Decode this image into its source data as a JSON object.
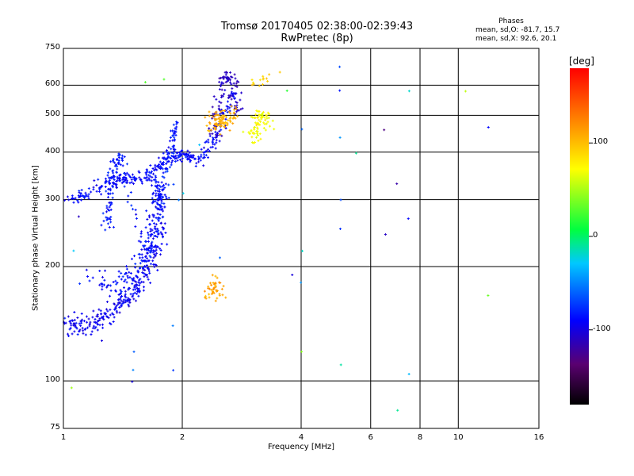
{
  "chart_data": {
    "type": "scatter",
    "title": "Tromsø 20170405 02:38:00-02:39:43",
    "subtitle": "RwPretec (8p)",
    "xlabel": "Frequency [MHz]",
    "ylabel": "Stationary phase Virtual Height [km]",
    "x_scale": "log",
    "y_scale": "log",
    "xlim": [
      1,
      16
    ],
    "ylim": [
      75,
      750
    ],
    "x_ticks": [
      1,
      2,
      4,
      6,
      8,
      10,
      16
    ],
    "x_tick_labels": [
      "1",
      "2",
      "4",
      "6",
      "8",
      "10",
      "16"
    ],
    "y_ticks": [
      75,
      100,
      200,
      300,
      400,
      500,
      600,
      750
    ],
    "y_tick_labels": [
      "75",
      "100",
      "200",
      "300",
      "400",
      "500",
      "600",
      "750"
    ],
    "grid": true,
    "stats": {
      "heading": "Phases",
      "line_o": "mean, sd,O: -81.7, 15.7",
      "line_x": "mean, sd,X:  92.6, 20.1"
    },
    "colorbar": {
      "label": "[deg]",
      "range": [
        -180,
        180
      ],
      "ticks": [
        100,
        0,
        -100
      ],
      "tick_labels": [
        "100",
        "0",
        "-100"
      ]
    },
    "clusters": [
      {
        "desc": "O-trace low branch",
        "points": [
          [
            1.02,
            142
          ],
          [
            1.05,
            140
          ],
          [
            1.1,
            138
          ],
          [
            1.15,
            140
          ],
          [
            1.2,
            142
          ],
          [
            1.25,
            145
          ],
          [
            1.3,
            150
          ],
          [
            1.35,
            155
          ],
          [
            1.4,
            160
          ],
          [
            1.45,
            165
          ],
          [
            1.5,
            170
          ],
          [
            1.55,
            180
          ],
          [
            1.6,
            190
          ],
          [
            1.65,
            200
          ],
          [
            1.7,
            215
          ],
          [
            1.75,
            235
          ],
          [
            1.78,
            255
          ]
        ],
        "spread": [
          0.04,
          10
        ],
        "n": 260,
        "phase": -95,
        "phase_sd": 12
      },
      {
        "desc": "O-trace mid branch",
        "points": [
          [
            1.0,
            295
          ],
          [
            1.1,
            305
          ],
          [
            1.2,
            320
          ],
          [
            1.3,
            335
          ],
          [
            1.4,
            340
          ],
          [
            1.5,
            340
          ],
          [
            1.6,
            345
          ],
          [
            1.7,
            360
          ],
          [
            1.8,
            380
          ],
          [
            1.9,
            395
          ],
          [
            2.0,
            395
          ],
          [
            2.1,
            385
          ],
          [
            2.2,
            385
          ],
          [
            2.3,
            400
          ],
          [
            2.4,
            430
          ],
          [
            2.5,
            470
          ],
          [
            2.6,
            520
          ],
          [
            2.7,
            575
          ]
        ],
        "spread": [
          0.04,
          14
        ],
        "n": 340,
        "phase": -90,
        "phase_sd": 12
      },
      {
        "desc": "O-trace vertical column",
        "points": [
          [
            1.3,
            250
          ],
          [
            1.3,
            290
          ],
          [
            1.32,
            330
          ],
          [
            1.35,
            370
          ],
          [
            1.4,
            390
          ],
          [
            1.6,
            200
          ],
          [
            1.7,
            240
          ],
          [
            1.75,
            280
          ],
          [
            1.8,
            330
          ],
          [
            1.85,
            380
          ],
          [
            1.9,
            430
          ],
          [
            1.92,
            480
          ]
        ],
        "spread": [
          0.03,
          12
        ],
        "n": 220,
        "phase": -85,
        "phase_sd": 14
      },
      {
        "desc": "O-trace lower wide",
        "points": [
          [
            1.2,
            190
          ],
          [
            1.3,
            175
          ],
          [
            1.4,
            180
          ],
          [
            1.5,
            190
          ],
          [
            1.6,
            210
          ],
          [
            1.65,
            230
          ],
          [
            1.7,
            260
          ],
          [
            1.72,
            280
          ],
          [
            1.75,
            300
          ],
          [
            1.72,
            320
          ],
          [
            1.7,
            340
          ]
        ],
        "spread": [
          0.05,
          14
        ],
        "n": 180,
        "phase": -88,
        "phase_sd": 12
      },
      {
        "desc": "O-trace F2 top",
        "points": [
          [
            2.4,
            440
          ],
          [
            2.45,
            480
          ],
          [
            2.5,
            540
          ],
          [
            2.55,
            600
          ],
          [
            2.6,
            640
          ],
          [
            2.65,
            620
          ],
          [
            2.7,
            580
          ],
          [
            2.72,
            540
          ],
          [
            2.75,
            510
          ]
        ],
        "spread": [
          0.04,
          18
        ],
        "n": 110,
        "phase": -110,
        "phase_sd": 10
      },
      {
        "desc": "X-trace F2",
        "points": [
          [
            2.35,
            460
          ],
          [
            2.4,
            480
          ],
          [
            2.45,
            500
          ],
          [
            2.5,
            490
          ],
          [
            2.55,
            470
          ],
          [
            2.6,
            480
          ],
          [
            2.65,
            500
          ],
          [
            2.7,
            520
          ]
        ],
        "spread": [
          0.05,
          25
        ],
        "n": 90,
        "phase": 105,
        "phase_sd": 10
      },
      {
        "desc": "X-trace F2 right",
        "points": [
          [
            3.0,
            430
          ],
          [
            3.05,
            450
          ],
          [
            3.1,
            470
          ],
          [
            3.15,
            490
          ],
          [
            3.2,
            510
          ],
          [
            3.25,
            490
          ],
          [
            3.3,
            470
          ]
        ],
        "spread": [
          0.05,
          20
        ],
        "n": 80,
        "phase": 70,
        "phase_sd": 12
      },
      {
        "desc": "X-trace top",
        "points": [
          [
            3.0,
            600
          ],
          [
            3.3,
            630
          ],
          [
            3.5,
            640
          ]
        ],
        "spread": [
          0.06,
          12
        ],
        "n": 14,
        "phase": 90,
        "phase_sd": 10
      },
      {
        "desc": "X-trace low E",
        "points": [
          [
            2.35,
            165
          ],
          [
            2.4,
            175
          ],
          [
            2.45,
            185
          ],
          [
            2.5,
            170
          ]
        ],
        "spread": [
          0.05,
          10
        ],
        "n": 45,
        "phase": 110,
        "phase_sd": 12
      },
      {
        "desc": "Scattered",
        "points": [
          [
            1.6,
            610
          ],
          [
            1.8,
            620
          ],
          [
            1.9,
            330
          ],
          [
            1.95,
            300
          ],
          [
            2.0,
            310
          ],
          [
            2.05,
            390
          ],
          [
            2.1,
            400
          ],
          [
            2.2,
            420
          ],
          [
            4.0,
            460
          ],
          [
            5.0,
            580
          ],
          [
            5.0,
            440
          ],
          [
            5.0,
            300
          ],
          [
            5.0,
            250
          ],
          [
            5.0,
            110
          ],
          [
            5.5,
            400
          ],
          [
            6.5,
            460
          ],
          [
            6.5,
            240
          ],
          [
            7.0,
            330
          ],
          [
            7.5,
            270
          ],
          [
            7.5,
            580
          ],
          [
            7.5,
            105
          ],
          [
            10.5,
            580
          ],
          [
            12.0,
            465
          ],
          [
            12.0,
            170
          ],
          [
            1.5,
            120
          ],
          [
            1.5,
            105
          ],
          [
            1.5,
            100
          ],
          [
            1.05,
            95
          ],
          [
            1.1,
            180
          ],
          [
            1.05,
            220
          ],
          [
            1.1,
            270
          ],
          [
            4.0,
            220
          ],
          [
            4.0,
            180
          ],
          [
            3.8,
            190
          ],
          [
            4.0,
            120
          ],
          [
            2.5,
            210
          ],
          [
            5.0,
            670
          ],
          [
            3.7,
            580
          ],
          [
            7.0,
            85
          ],
          [
            1.9,
            140
          ],
          [
            1.9,
            105
          ]
        ],
        "spread": [
          0.01,
          3
        ],
        "n": 41,
        "phase": -50,
        "phase_sd": 110
      }
    ]
  }
}
